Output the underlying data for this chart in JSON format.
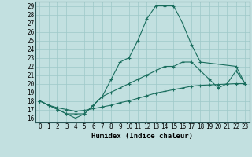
{
  "xlabel": "Humidex (Indice chaleur)",
  "xlim": [
    -0.5,
    23.5
  ],
  "ylim": [
    15.5,
    29.5
  ],
  "yticks": [
    16,
    17,
    18,
    19,
    20,
    21,
    22,
    23,
    24,
    25,
    26,
    27,
    28,
    29
  ],
  "xticks": [
    0,
    1,
    2,
    3,
    4,
    5,
    6,
    7,
    8,
    9,
    10,
    11,
    12,
    13,
    14,
    15,
    16,
    17,
    18,
    19,
    20,
    21,
    22,
    23
  ],
  "bg_color": "#c2e0e0",
  "grid_color": "#9ec8c8",
  "line_color": "#1a6e5e",
  "curves": [
    {
      "x": [
        0,
        1,
        2,
        3,
        4,
        5,
        6,
        7,
        8,
        9,
        10,
        11,
        12,
        13,
        14,
        15,
        16,
        17,
        18,
        22,
        23
      ],
      "y": [
        18.0,
        17.5,
        17.0,
        16.5,
        16.0,
        16.5,
        17.5,
        18.5,
        20.5,
        22.5,
        23.0,
        25.0,
        27.5,
        29.0,
        29.0,
        29.0,
        27.0,
        24.5,
        22.5,
        22.0,
        20.0
      ]
    },
    {
      "x": [
        0,
        2,
        3,
        4,
        5,
        6,
        7,
        8,
        9,
        10,
        11,
        12,
        13,
        14,
        15,
        16,
        17,
        18,
        19,
        20,
        21,
        22,
        23
      ],
      "y": [
        18.0,
        17.0,
        16.5,
        16.5,
        16.5,
        17.5,
        18.5,
        19.0,
        19.5,
        20.0,
        20.5,
        21.0,
        21.5,
        22.0,
        22.0,
        22.5,
        22.5,
        21.5,
        20.5,
        19.5,
        20.0,
        21.5,
        20.0
      ]
    },
    {
      "x": [
        0,
        1,
        2,
        3,
        4,
        5,
        6,
        7,
        8,
        9,
        10,
        11,
        12,
        13,
        14,
        15,
        16,
        17,
        18,
        19,
        20,
        21,
        22,
        23
      ],
      "y": [
        18.0,
        17.5,
        17.2,
        17.0,
        16.8,
        16.9,
        17.1,
        17.3,
        17.5,
        17.8,
        18.0,
        18.3,
        18.6,
        18.9,
        19.1,
        19.3,
        19.5,
        19.7,
        19.8,
        19.85,
        19.9,
        19.95,
        20.0,
        20.0
      ]
    }
  ]
}
